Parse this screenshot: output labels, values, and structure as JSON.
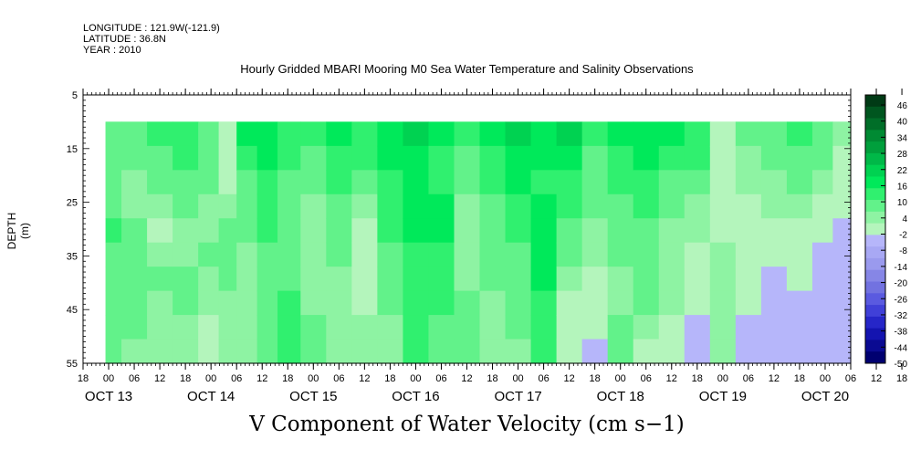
{
  "header": {
    "longitude": "LONGITUDE : 121.9W(-121.9)",
    "latitude": "LATITUDE : 36.8N",
    "year": "YEAR : 2010"
  },
  "chart_data": {
    "type": "heatmap",
    "title": "Hourly Gridded MBARI Mooring M0 Sea Water Temperature and Salinity Observations",
    "bottom_title": "V Component of Water Velocity (cm s−1)",
    "ylabel": "DEPTH (m)",
    "y_reversed": true,
    "ylim": [
      5,
      55
    ],
    "data_depth_range": [
      10,
      55
    ],
    "y_ticks": [
      "5",
      "15",
      "25",
      "35",
      "45",
      "55"
    ],
    "x_hour_ticks": [
      "18",
      "00",
      "06",
      "12",
      "18",
      "00",
      "06",
      "12",
      "18",
      "00",
      "06",
      "12",
      "18",
      "00",
      "06",
      "12",
      "18",
      "00",
      "06",
      "12",
      "18",
      "00",
      "06",
      "12",
      "18",
      "00",
      "06",
      "12",
      "18",
      "00",
      "06",
      "12",
      "18"
    ],
    "x_date_labels": [
      "OCT 13",
      "OCT 14",
      "OCT 15",
      "OCT 16",
      "OCT 17",
      "OCT 18",
      "OCT 19",
      "OCT 20"
    ],
    "colorbar_ticks": [
      "46",
      "40",
      "34",
      "28",
      "22",
      "16",
      "10",
      "4",
      "-2",
      "-8",
      "-14",
      "-20",
      "-26",
      "-32",
      "-38",
      "-44",
      "-50"
    ],
    "colorbar_colors": [
      "#003a15",
      "#00561f",
      "#006e28",
      "#008a33",
      "#009f3c",
      "#00b848",
      "#00d251",
      "#00e95a",
      "#30f06f",
      "#62f28a",
      "#8ef3a3",
      "#b4f5bc",
      "#b6b6fa",
      "#a8a8f4",
      "#9a9aee",
      "#8686e6",
      "#7272e0",
      "#5a5ae0",
      "#4040d8",
      "#2626c8",
      "#1414b0",
      "#0a0a92",
      "#000070"
    ],
    "palette_note_colors": {
      "green_strong": "#00e54f",
      "green_mid": "#4cf07e",
      "green_light": "#a8f5b4",
      "blue_light": "#b4b4fa",
      "blue_mid": "#9d9df0"
    },
    "time_columns_days": [
      {
        "t": 0.25,
        "profile": [
          6,
          6,
          6,
          8,
          10,
          8,
          6,
          6,
          6,
          6
        ]
      },
      {
        "t": 0.5,
        "profile": [
          8,
          6,
          4,
          4,
          6,
          8,
          6,
          6,
          6,
          4
        ]
      },
      {
        "t": 0.75,
        "profile": [
          10,
          8,
          6,
          4,
          -4,
          4,
          6,
          4,
          2,
          4
        ]
      },
      {
        "t": 1.0,
        "profile": [
          12,
          10,
          8,
          6,
          4,
          4,
          6,
          6,
          4,
          4
        ]
      },
      {
        "t": 1.25,
        "profile": [
          8,
          6,
          6,
          4,
          4,
          6,
          4,
          2,
          -2,
          -4
        ]
      },
      {
        "t": 1.4,
        "profile": [
          -4,
          -4,
          -2,
          4,
          6,
          6,
          6,
          4,
          4,
          2
        ]
      },
      {
        "t": 1.6,
        "profile": [
          14,
          10,
          8,
          6,
          6,
          4,
          2,
          2,
          4,
          4
        ]
      },
      {
        "t": 1.8,
        "profile": [
          16,
          14,
          12,
          10,
          10,
          8,
          8,
          6,
          6,
          6
        ]
      },
      {
        "t": 2.0,
        "profile": [
          12,
          10,
          8,
          6,
          6,
          6,
          8,
          10,
          12,
          12
        ]
      },
      {
        "t": 2.25,
        "profile": [
          10,
          8,
          6,
          4,
          4,
          2,
          2,
          4,
          6,
          6
        ]
      },
      {
        "t": 2.5,
        "profile": [
          14,
          12,
          10,
          8,
          6,
          6,
          4,
          4,
          4,
          4
        ]
      },
      {
        "t": 2.75,
        "profile": [
          12,
          10,
          6,
          4,
          -2,
          -4,
          -4,
          -2,
          2,
          4
        ]
      },
      {
        "t": 3.0,
        "profile": [
          16,
          14,
          12,
          10,
          10,
          8,
          6,
          6,
          4,
          4
        ]
      },
      {
        "t": 3.25,
        "profile": [
          18,
          16,
          14,
          14,
          14,
          12,
          12,
          10,
          10,
          10
        ]
      },
      {
        "t": 3.5,
        "profile": [
          14,
          12,
          12,
          14,
          14,
          12,
          10,
          10,
          8,
          8
        ]
      },
      {
        "t": 3.75,
        "profile": [
          12,
          8,
          6,
          4,
          4,
          4,
          4,
          6,
          8,
          8
        ]
      },
      {
        "t": 4.0,
        "profile": [
          14,
          12,
          10,
          8,
          6,
          6,
          6,
          4,
          4,
          4
        ]
      },
      {
        "t": 4.25,
        "profile": [
          18,
          16,
          14,
          12,
          10,
          8,
          8,
          6,
          6,
          4
        ]
      },
      {
        "t": 4.5,
        "profile": [
          16,
          14,
          12,
          14,
          14,
          14,
          14,
          12,
          10,
          10
        ]
      },
      {
        "t": 4.75,
        "profile": [
          18,
          16,
          12,
          10,
          8,
          6,
          4,
          -2,
          -4,
          -2
        ]
      },
      {
        "t": 5.0,
        "profile": [
          10,
          8,
          6,
          6,
          4,
          4,
          -2,
          -4,
          -4,
          -6
        ]
      },
      {
        "t": 5.25,
        "profile": [
          14,
          12,
          10,
          8,
          8,
          6,
          4,
          4,
          6,
          6
        ]
      },
      {
        "t": 5.5,
        "profile": [
          16,
          14,
          12,
          10,
          8,
          6,
          6,
          6,
          4,
          -2
        ]
      },
      {
        "t": 5.75,
        "profile": [
          14,
          12,
          8,
          6,
          4,
          4,
          4,
          2,
          -2,
          -4
        ]
      },
      {
        "t": 6.0,
        "profile": [
          12,
          10,
          6,
          4,
          2,
          -2,
          -4,
          -4,
          -6,
          -6
        ]
      },
      {
        "t": 6.25,
        "profile": [
          -2,
          -4,
          -4,
          -4,
          -2,
          2,
          4,
          4,
          2,
          2
        ]
      },
      {
        "t": 6.5,
        "profile": [
          6,
          4,
          4,
          -2,
          -4,
          -4,
          -4,
          -4,
          -6,
          -6
        ]
      },
      {
        "t": 6.75,
        "profile": [
          8,
          6,
          4,
          2,
          -2,
          -4,
          -6,
          -6,
          -6,
          -8
        ]
      },
      {
        "t": 7.0,
        "profile": [
          10,
          8,
          6,
          4,
          -2,
          -4,
          -4,
          -6,
          -6,
          -8
        ]
      },
      {
        "t": 7.25,
        "profile": [
          8,
          6,
          4,
          -2,
          -4,
          -6,
          -6,
          -6,
          -8,
          -8
        ]
      },
      {
        "t": 7.4,
        "profile": [
          2,
          -2,
          -4,
          -4,
          -6,
          -6,
          -8,
          -8,
          -8,
          -8
        ]
      }
    ],
    "xlim_days": [
      0,
      7.5
    ]
  }
}
